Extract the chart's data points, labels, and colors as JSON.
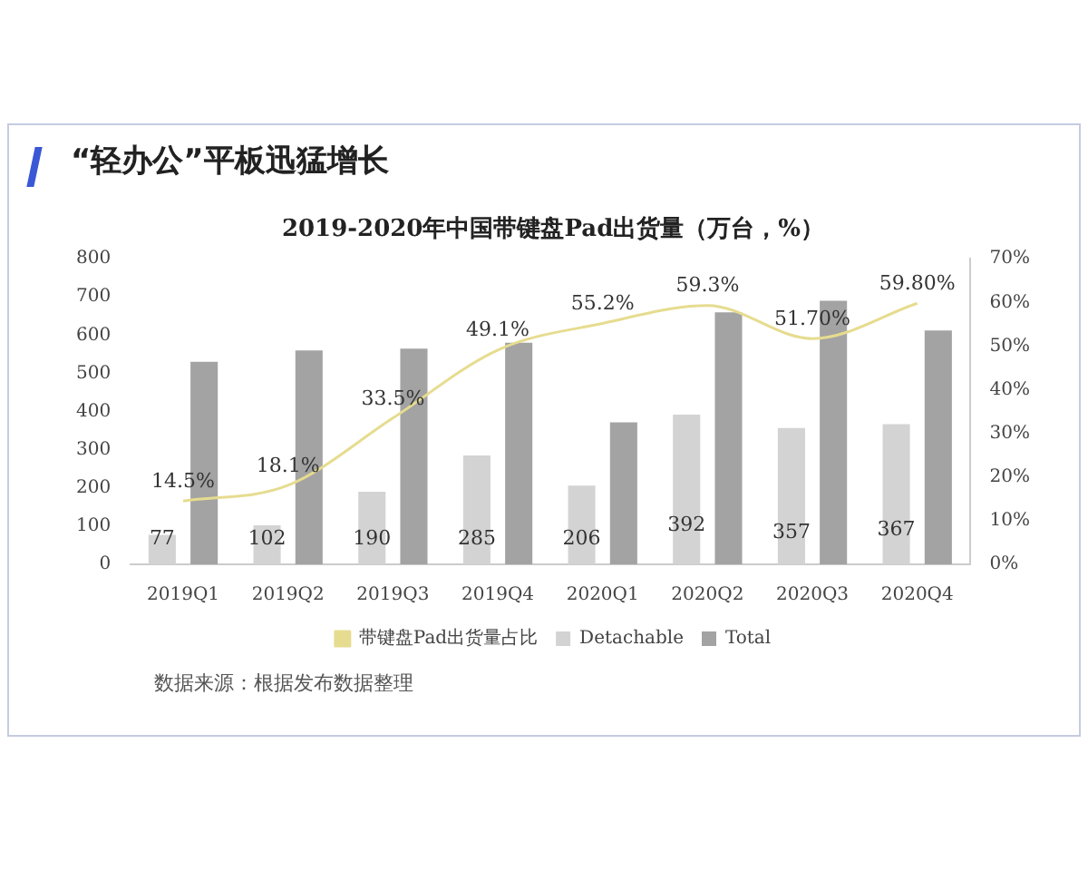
{
  "chart_data": {
    "type": "bar",
    "title": "“轻办公”平板迅猛增长",
    "subtitle": "2019-2020年中国带键盘Pad出货量（万台，%）",
    "categories": [
      "2019Q1",
      "2019Q2",
      "2019Q3",
      "2019Q4",
      "2020Q1",
      "2020Q2",
      "2020Q3",
      "2020Q4"
    ],
    "series": [
      {
        "name": "Detachable",
        "color": "#d3d3d3",
        "values": [
          77,
          102,
          190,
          285,
          206,
          392,
          357,
          367
        ],
        "value_labels": [
          "77",
          "102",
          "190",
          "285",
          "206",
          "392",
          "357",
          "367"
        ]
      },
      {
        "name": "Total",
        "color": "#a3a3a3",
        "values": [
          530,
          560,
          565,
          580,
          372,
          660,
          690,
          612
        ]
      },
      {
        "name": "带键盘Pad出货量占比",
        "type": "line",
        "axis": "y2",
        "color": "#e6dc8f",
        "values": [
          14.5,
          18.1,
          33.5,
          49.1,
          55.2,
          59.3,
          51.7,
          59.8
        ],
        "value_labels": [
          "14.5%",
          "18.1%",
          "33.5%",
          "49.1%",
          "55.2%",
          "59.3%",
          "51.70%",
          "59.80%"
        ]
      }
    ],
    "ylim": [
      0,
      800
    ],
    "yticks": [
      0,
      100,
      200,
      300,
      400,
      500,
      600,
      700,
      800
    ],
    "y2lim": [
      0,
      70
    ],
    "y2ticks": [
      {
        "value": 0,
        "label": "0%"
      },
      {
        "value": 10,
        "label": "10%"
      },
      {
        "value": 20,
        "label": "20%"
      },
      {
        "value": 30,
        "label": "30%"
      },
      {
        "value": 40,
        "label": "40%"
      },
      {
        "value": 50,
        "label": "50%"
      },
      {
        "value": 60,
        "label": "60%"
      },
      {
        "value": 70,
        "label": "70%"
      }
    ],
    "grid": false,
    "legend": "bottom",
    "marker": "none",
    "line_style": "solid",
    "annotations": [
      "数据来源：根据发布数据整理"
    ]
  }
}
